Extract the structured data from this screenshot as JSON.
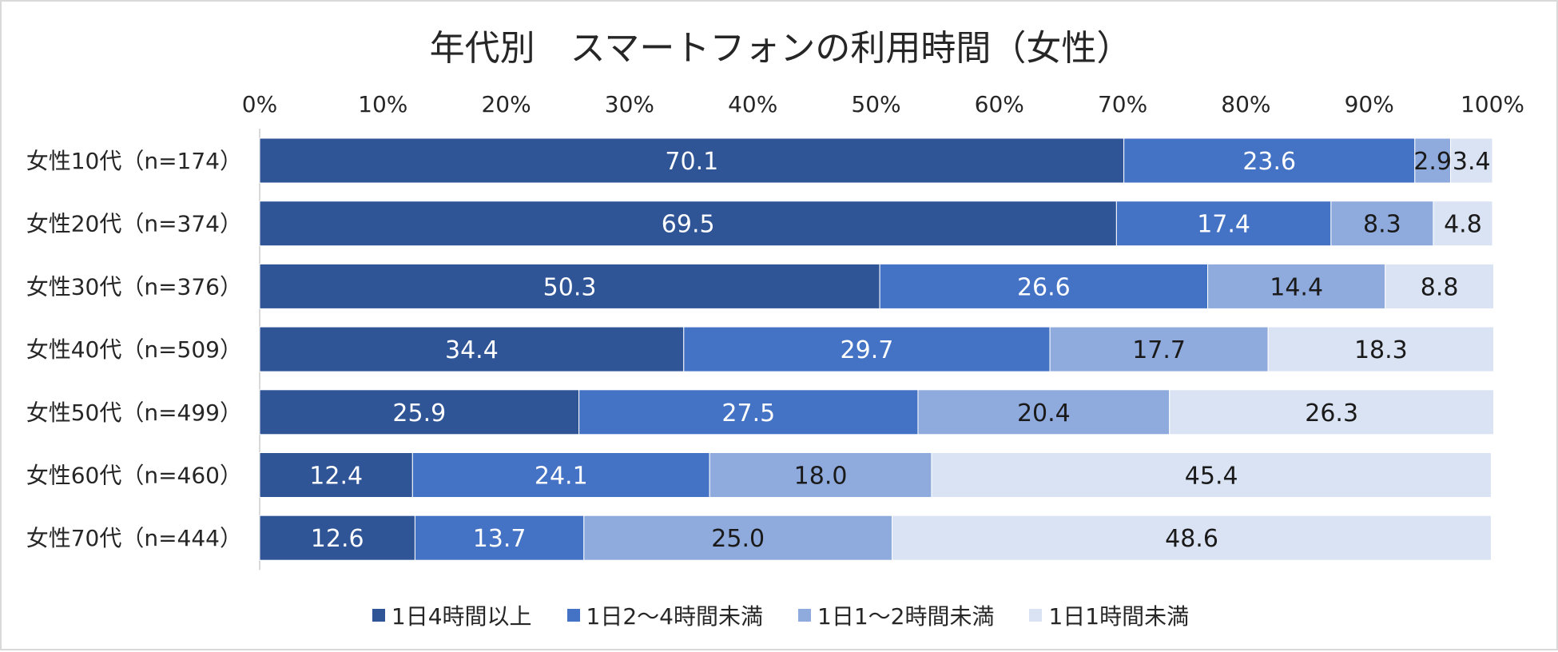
{
  "chart_data": {
    "type": "bar",
    "orientation": "horizontal",
    "stacked": "percent",
    "title": "年代別　スマートフォンの利用時間（女性）",
    "categories": [
      "女性10代（n=174）",
      "女性20代（n=374）",
      "女性30代（n=376）",
      "女性40代（n=509）",
      "女性50代（n=499）",
      "女性60代（n=460）",
      "女性70代（n=444）"
    ],
    "series": [
      {
        "name": "1日4時間以上",
        "color": "#2f5597",
        "label_color": "#ffffff",
        "values": [
          70.1,
          69.5,
          50.3,
          34.4,
          25.9,
          12.4,
          12.6
        ],
        "labels": [
          "70.1",
          "69.5",
          "50.3",
          "34.4",
          "25.9",
          "12.4",
          "12.6"
        ]
      },
      {
        "name": "1日2～4時間未満",
        "color": "#4472c4",
        "label_color": "#ffffff",
        "values": [
          23.6,
          17.4,
          26.6,
          29.7,
          27.5,
          24.1,
          13.7
        ],
        "labels": [
          "23.6",
          "17.4",
          "26.6",
          "29.7",
          "27.5",
          "24.1",
          "13.7"
        ]
      },
      {
        "name": "1日1～2時間未満",
        "color": "#8faadc",
        "label_color": "#1a1a1a",
        "values": [
          2.9,
          8.3,
          14.4,
          17.7,
          20.4,
          18.0,
          25.0
        ],
        "labels": [
          "2.9",
          "8.3",
          "14.4",
          "17.7",
          "20.4",
          "18.0",
          "25.0"
        ]
      },
      {
        "name": "1日1時間未満",
        "color": "#dae3f3",
        "label_color": "#1a1a1a",
        "values": [
          3.4,
          4.8,
          8.8,
          18.3,
          26.3,
          45.4,
          48.6
        ],
        "labels": [
          "3.4",
          "4.8",
          "8.8",
          "18.3",
          "26.3",
          "45.4",
          "48.6"
        ]
      }
    ],
    "xlim": [
      0,
      100
    ],
    "xticks": [
      "0%",
      "10%",
      "20%",
      "30%",
      "40%",
      "50%",
      "60%",
      "70%",
      "80%",
      "90%",
      "100%"
    ],
    "axis_position": "top",
    "legend_position": "bottom",
    "grid": false
  }
}
